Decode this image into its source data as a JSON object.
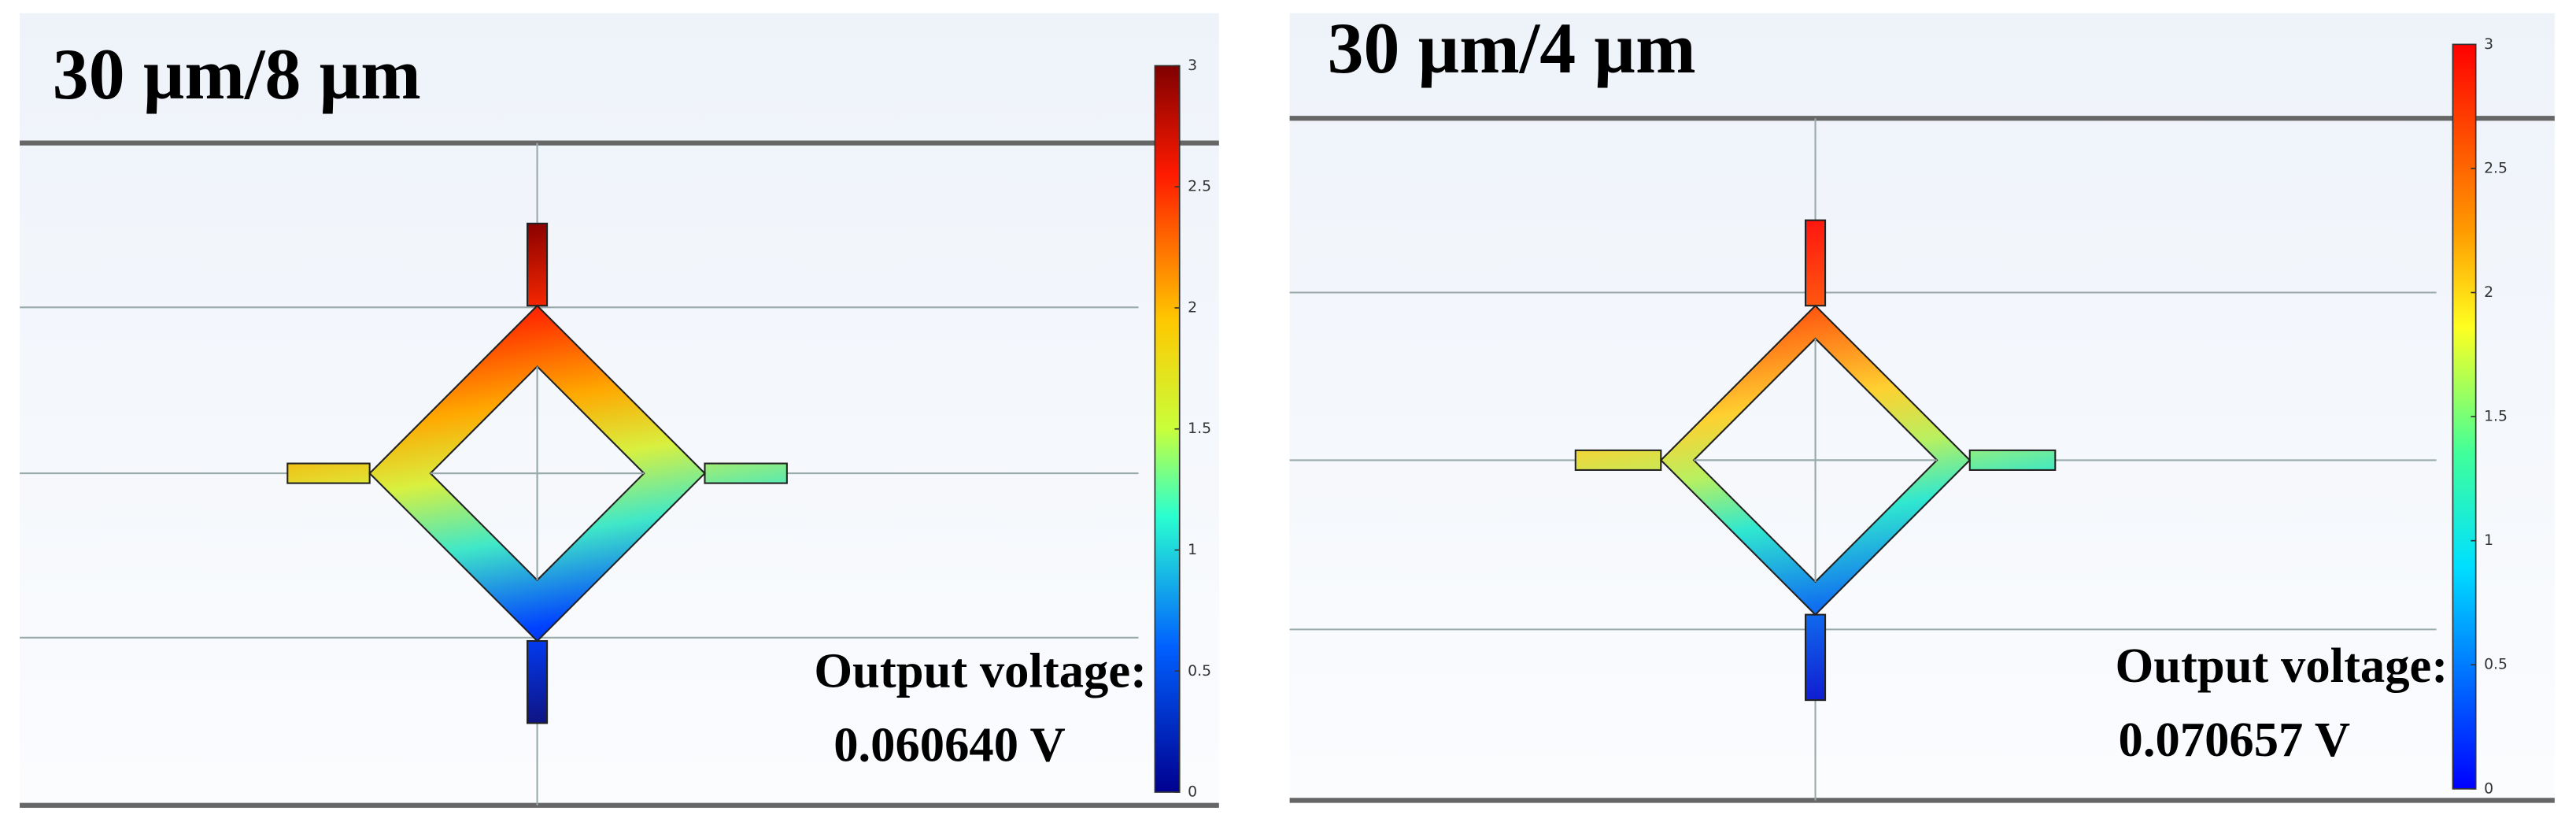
{
  "panels": [
    {
      "title": "30 µm/8 µm",
      "colorbar_range": [
        0,
        3
      ],
      "colorbar_ticks": [
        0,
        0.5,
        1,
        1.5,
        2,
        2.5,
        3
      ],
      "output_label": "Output voltage:",
      "output_value": "0.060640 V"
    },
    {
      "title": "30 µm/4 µm",
      "colorbar_range": [
        0,
        3
      ],
      "colorbar_ticks": [
        0,
        0.5,
        1,
        1.5,
        2,
        2.5,
        3
      ],
      "output_label": "Output voltage:",
      "output_value": "0.070657 V"
    }
  ]
}
